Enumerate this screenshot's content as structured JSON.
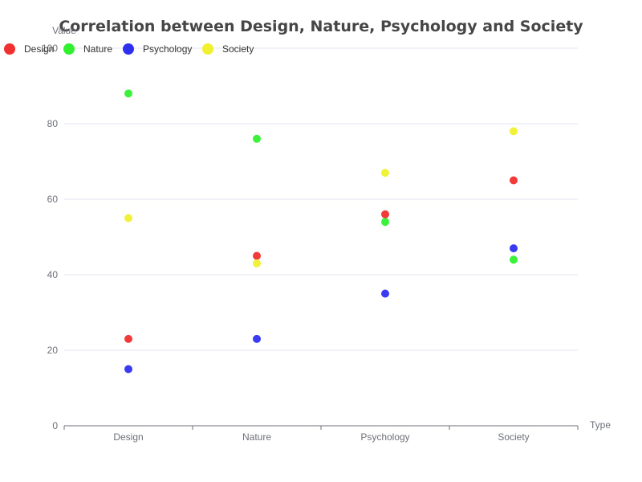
{
  "chart_data": {
    "type": "scatter",
    "title": "Correlation between Design, Nature, Psychology and Society",
    "xlabel": "Type",
    "ylabel": "Value",
    "categories": [
      "Design",
      "Nature",
      "Psychology",
      "Society"
    ],
    "ylim": [
      0,
      100
    ],
    "yticks": [
      0,
      20,
      40,
      60,
      80,
      100
    ],
    "grid": true,
    "legend_position": "top-left",
    "series": [
      {
        "name": "Design",
        "color": "#f0302f",
        "values": [
          23,
          45,
          56,
          65
        ]
      },
      {
        "name": "Nature",
        "color": "#31f02f",
        "values": [
          88,
          76,
          54,
          44
        ]
      },
      {
        "name": "Psychology",
        "color": "#2f2ff0",
        "values": [
          15,
          23,
          35,
          47
        ]
      },
      {
        "name": "Society",
        "color": "#f0f02f",
        "values": [
          55,
          43,
          67,
          78
        ]
      }
    ]
  }
}
